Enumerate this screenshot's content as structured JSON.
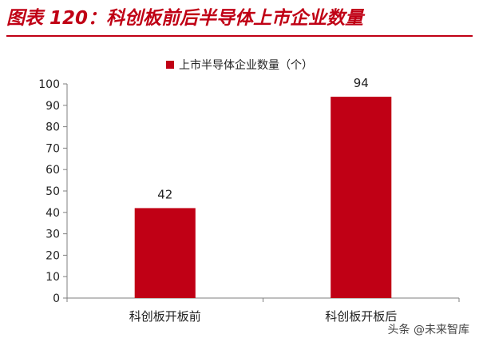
{
  "figure_title": "图表 120：科创板前后半导体上市企业数量",
  "watermark": "头条 @未来智库",
  "colors": {
    "accent": "#c00015",
    "bar": "#c00015",
    "axis": "#7f7f7f",
    "text": "#222222"
  },
  "chart_data": {
    "type": "bar",
    "title": "",
    "xlabel": "",
    "ylabel": "",
    "categories": [
      "科创板开板前",
      "科创板开板后"
    ],
    "series": [
      {
        "name": "上市半导体企业数量（个）",
        "values": [
          42,
          94
        ]
      }
    ],
    "ylim": [
      0,
      100
    ],
    "yticks": [
      0,
      10,
      20,
      30,
      40,
      50,
      60,
      70,
      80,
      90,
      100
    ],
    "grid": false,
    "legend": "top-center",
    "data_labels": true
  }
}
